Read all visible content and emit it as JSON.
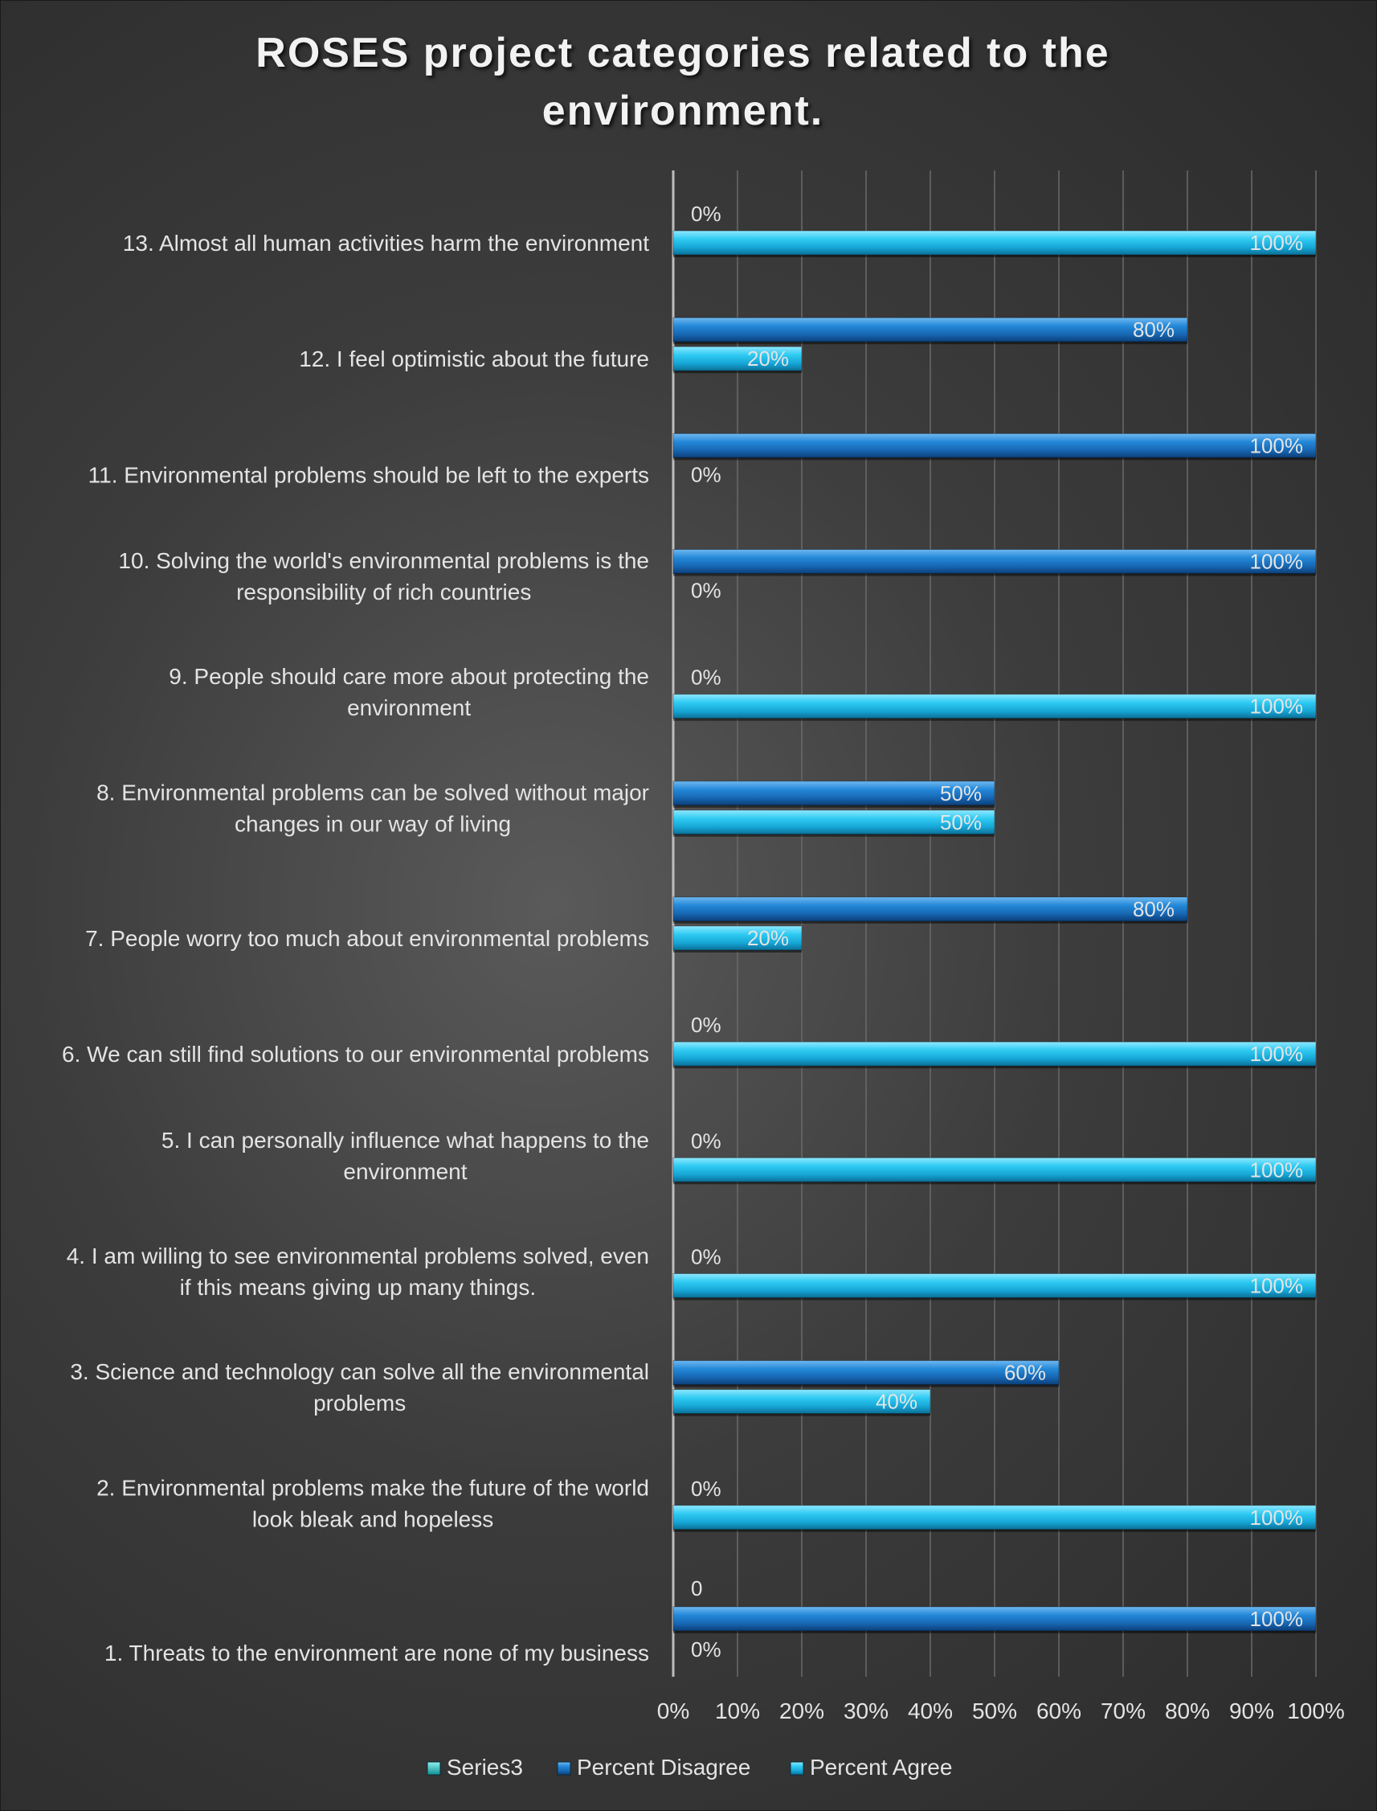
{
  "chart_data": {
    "type": "bar",
    "orientation": "horizontal",
    "title": "ROSES project categories related to the environment.",
    "title_lines": [
      "ROSES project categories related to the",
      "environment."
    ],
    "categories": [
      [
        "1. Threats to the environment are none of my business"
      ],
      [
        "2. Environmental problems make the future of the world",
        "look bleak and hopeless"
      ],
      [
        "3. Science and technology can solve all the environmental",
        "problems"
      ],
      [
        "4. I am willing to see environmental problems solved, even",
        "if this means giving up many things."
      ],
      [
        "5. I can personally influence what happens to the",
        "environment"
      ],
      [
        "6. We can still find solutions to our environmental problems"
      ],
      [
        "7. People worry too much about environmental problems"
      ],
      [
        "8. Environmental problems can be solved without major",
        "changes in our way of living"
      ],
      [
        "9. People should care more about protecting the",
        "environment"
      ],
      [
        "10. Solving the world's environmental problems is the",
        "responsibility of rich countries"
      ],
      [
        "11. Environmental problems should be left to the experts"
      ],
      [
        "12. I feel optimistic about the future"
      ],
      [
        "13. Almost all human activities harm the environment"
      ]
    ],
    "series": [
      {
        "name": "Percent Agree",
        "color": "#29c6f0",
        "values": [
          0,
          100,
          40,
          100,
          100,
          100,
          20,
          50,
          100,
          0,
          0,
          20,
          100
        ],
        "labels": [
          "0%",
          "100%",
          "40%",
          "100%",
          "100%",
          "100%",
          "20%",
          "50%",
          "100%",
          "0%",
          "0%",
          "20%",
          "100%"
        ]
      },
      {
        "name": "Percent Disagree",
        "color": "#1f86d6",
        "values": [
          100,
          0,
          60,
          0,
          0,
          0,
          80,
          50,
          0,
          100,
          100,
          80,
          0
        ],
        "labels": [
          "100%",
          "0%",
          "60%",
          "0%",
          "0%",
          "0%",
          "80%",
          "50%",
          "0%",
          "100%",
          "100%",
          "80%",
          "0%"
        ]
      },
      {
        "name": "Series3",
        "color": "#1ec8c8",
        "values": [
          0,
          null,
          null,
          null,
          null,
          null,
          null,
          null,
          null,
          null,
          null,
          null,
          null
        ],
        "labels": [
          "0",
          null,
          null,
          null,
          null,
          null,
          null,
          null,
          null,
          null,
          null,
          null,
          null
        ]
      }
    ],
    "x_ticks": [
      "0%",
      "10%",
      "20%",
      "30%",
      "40%",
      "50%",
      "60%",
      "70%",
      "80%",
      "90%",
      "100%"
    ],
    "xlim": [
      0,
      100
    ],
    "grid": true,
    "legend_position": "bottom",
    "legend_order": [
      "Series3",
      "Percent Disagree",
      "Percent Agree"
    ]
  }
}
